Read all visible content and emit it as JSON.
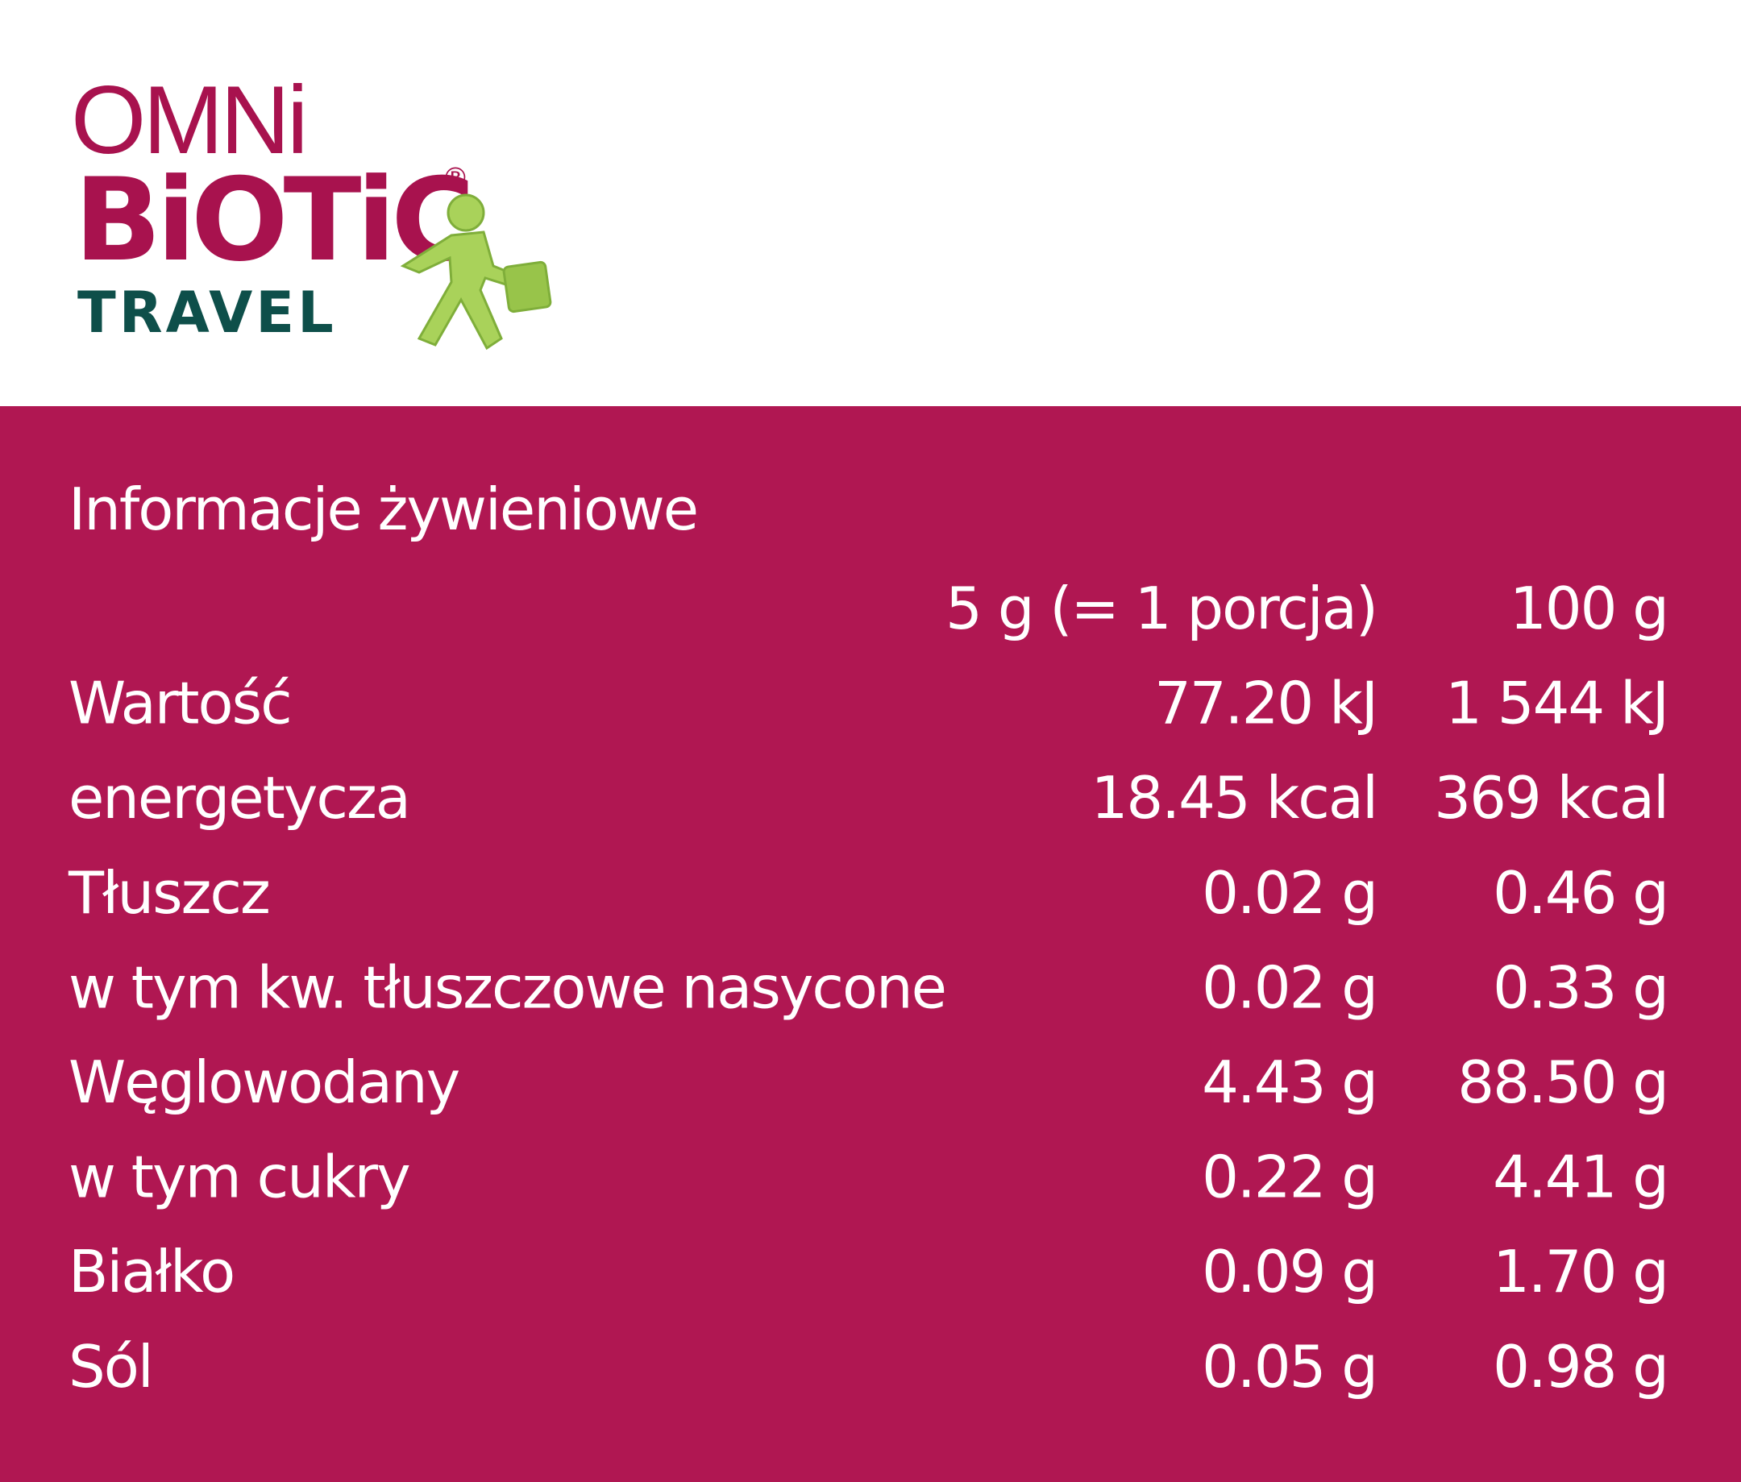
{
  "logo": {
    "line1": "OMNi",
    "line2": "BiOTiC",
    "registered": "®",
    "line3": "TRAVEL"
  },
  "table": {
    "title": "Informacje żywieniowe",
    "header": [
      "5 g (= 1 porcja)",
      "100 g"
    ],
    "rows": [
      [
        "Wartość",
        "77.20 kJ",
        "1 544 kJ"
      ],
      [
        "energetycza",
        "18.45 kcal",
        "369 kcal"
      ],
      [
        "Tłuszcz",
        "0.02 g",
        "0.46 g"
      ],
      [
        "w tym kw. tłuszczowe nasycone",
        "0.02 g",
        "0.33 g"
      ],
      [
        "Węglowodany",
        "4.43 g",
        "88.50 g"
      ],
      [
        "w tym cukry",
        "0.22 g",
        "4.41 g"
      ],
      [
        "Białko",
        "0.09 g",
        "1.70 g"
      ],
      [
        "Sól",
        "0.05 g",
        "0.98 g"
      ]
    ]
  }
}
